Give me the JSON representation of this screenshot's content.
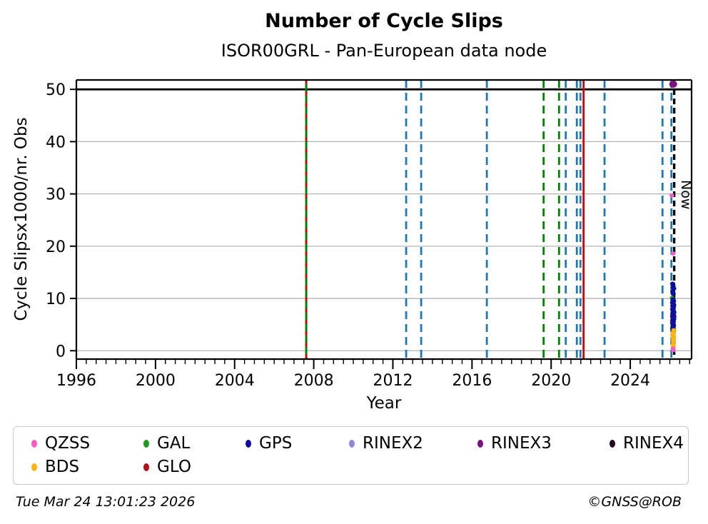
{
  "header": {
    "title": "Number of Cycle Slips",
    "subtitle": "ISOR00GRL - Pan-European data node"
  },
  "axes": {
    "xlabel": "Year",
    "ylabel": "Cycle Slipsx1000/nr. Obs",
    "now_label": "Now"
  },
  "footer": {
    "timestamp": "Tue Mar 24 13:01:23 2026",
    "copyright": "©GNSS@ROB"
  },
  "legend": {
    "items": [
      {
        "label": "QZSS",
        "color": "#f95cc5"
      },
      {
        "label": "GAL",
        "color": "#1f9a1f"
      },
      {
        "label": "GPS",
        "color": "#0f0f9b"
      },
      {
        "label": "RINEX2",
        "color": "#8e8ad8"
      },
      {
        "label": "RINEX3",
        "color": "#7b107b"
      },
      {
        "label": "RINEX4",
        "color": "#260b26"
      },
      {
        "label": "BDS",
        "color": "#feb414"
      },
      {
        "label": "GLO",
        "color": "#b11117"
      }
    ]
  },
  "chart_data": {
    "type": "scatter",
    "title": "Number of Cycle Slips",
    "subtitle": "ISOR00GRL - Pan-European data node",
    "xlabel": "Year",
    "ylabel": "Cycle Slipsx1000/nr. Obs",
    "xlim": [
      1996,
      2027.1
    ],
    "ylim": [
      -1.6,
      51.8
    ],
    "xticks": [
      1996,
      2000,
      2004,
      2008,
      2012,
      2016,
      2020,
      2024
    ],
    "x_minor_step": 0.5,
    "yticks": [
      0,
      10,
      20,
      30,
      40,
      50
    ],
    "grid": true,
    "grid_color": "#b3b3b3",
    "hlines": [
      {
        "y": 50,
        "color": "#000000",
        "width": 2.8
      }
    ],
    "now": {
      "year": 2026.22,
      "label": "Now",
      "color": "#000000",
      "width": 3.4,
      "dash": "8,5"
    },
    "vlines": [
      {
        "year": 2007.62,
        "color": "#008000",
        "style": "solid",
        "width": 3.0
      },
      {
        "year": 2007.62,
        "color": "#d40000",
        "style": "dashed",
        "width": 2.4,
        "dash": "6,10"
      },
      {
        "year": 2012.67,
        "color": "#1f77b4",
        "style": "dashed",
        "width": 2.8
      },
      {
        "year": 2013.43,
        "color": "#1f77b4",
        "style": "dashed",
        "width": 2.8
      },
      {
        "year": 2016.75,
        "color": "#1f77b4",
        "style": "dashed",
        "width": 2.8
      },
      {
        "year": 2019.62,
        "color": "#008000",
        "style": "dashed",
        "width": 2.8
      },
      {
        "year": 2020.4,
        "color": "#008000",
        "style": "dashed",
        "width": 2.8
      },
      {
        "year": 2020.74,
        "color": "#1f77b4",
        "style": "dashed",
        "width": 2.8
      },
      {
        "year": 2021.3,
        "color": "#1f77b4",
        "style": "dashed",
        "width": 2.8
      },
      {
        "year": 2021.48,
        "color": "#1f77b4",
        "style": "dashed",
        "width": 2.8
      },
      {
        "year": 2021.64,
        "color": "#d40000",
        "style": "solid",
        "width": 2.8
      },
      {
        "year": 2022.7,
        "color": "#1f77b4",
        "style": "dashed",
        "width": 2.8
      },
      {
        "year": 2025.63,
        "color": "#1f77b4",
        "style": "dashed",
        "width": 2.8
      },
      {
        "year": 2026.08,
        "color": "#1f77b4",
        "style": "dashed",
        "width": 2.8
      }
    ],
    "series": [
      {
        "name": "GAL",
        "color": "#1f9a1f",
        "size": 3.4,
        "points": [
          [
            2026.12,
            10.1
          ],
          [
            2026.21,
            7.2
          ],
          [
            2026.13,
            4.3
          ],
          [
            2026.19,
            3.6
          ]
        ]
      },
      {
        "name": "GLO",
        "color": "#b11117",
        "size": 3.4,
        "points": [
          [
            2026.22,
            6.6
          ],
          [
            2026.13,
            5.8
          ],
          [
            2026.16,
            3.1
          ],
          [
            2026.18,
            2.5
          ],
          [
            2026.15,
            2.2
          ]
        ]
      },
      {
        "name": "GPS",
        "color": "#0f0f9b",
        "size": 3.6,
        "points": [
          [
            2026.14,
            12.8
          ],
          [
            2026.17,
            12.1
          ],
          [
            2026.2,
            11.9
          ],
          [
            2026.15,
            11.3
          ],
          [
            2026.17,
            10.9
          ],
          [
            2026.16,
            9.8
          ],
          [
            2026.19,
            9.5
          ],
          [
            2026.14,
            9.2
          ],
          [
            2026.17,
            9.0
          ],
          [
            2026.2,
            8.7
          ],
          [
            2026.15,
            8.5
          ],
          [
            2026.18,
            8.2
          ],
          [
            2026.14,
            7.9
          ],
          [
            2026.17,
            7.7
          ],
          [
            2026.2,
            7.4
          ],
          [
            2026.15,
            7.1
          ],
          [
            2026.18,
            6.9
          ],
          [
            2026.14,
            6.6
          ],
          [
            2026.17,
            6.4
          ],
          [
            2026.2,
            6.1
          ],
          [
            2026.16,
            5.9
          ],
          [
            2026.18,
            5.6
          ],
          [
            2026.14,
            5.3
          ],
          [
            2026.17,
            5.1
          ],
          [
            2026.19,
            4.8
          ],
          [
            2026.16,
            4.5
          ],
          [
            2026.18,
            4.2
          ],
          [
            2026.15,
            4.0
          ]
        ]
      },
      {
        "name": "BDS",
        "color": "#feb414",
        "size": 3.6,
        "points": [
          [
            2026.2,
            3.9
          ],
          [
            2026.16,
            3.3
          ],
          [
            2026.18,
            2.8
          ],
          [
            2026.17,
            2.3
          ],
          [
            2026.19,
            1.8
          ],
          [
            2026.17,
            1.1
          ],
          [
            2026.18,
            0.8
          ]
        ]
      },
      {
        "name": "QZSS",
        "color": "#f95cc5",
        "size": 3.4,
        "points": [
          [
            2026.1,
            29.7
          ],
          [
            2026.17,
            18.6
          ],
          [
            2026.16,
            0.4
          ],
          [
            2026.18,
            0.1
          ]
        ]
      },
      {
        "name": "RINEX2",
        "color": "#8e8ad8",
        "size": 3.4,
        "points": []
      },
      {
        "name": "RINEX4",
        "color": "#260b26",
        "size": 3.4,
        "points": []
      },
      {
        "name": "RINEX3",
        "color": "#7b107b",
        "size": 5.5,
        "points": [
          [
            2026.17,
            51.0
          ]
        ]
      }
    ]
  }
}
